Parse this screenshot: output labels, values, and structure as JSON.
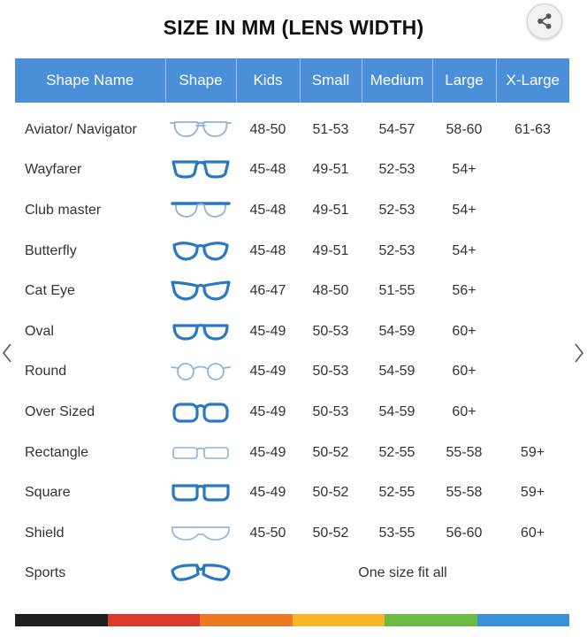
{
  "page": {
    "title": "SIZE IN MM (LENS WIDTH)"
  },
  "icons": {
    "share": "share-icon",
    "prev": "chevron-left-icon",
    "next": "chevron-right-icon"
  },
  "colors": {
    "header_bg": "#4a8fd8",
    "frame_bold": "#2b78c2",
    "frame_light": "#8fb4d8",
    "bar": [
      "#1f1f1f",
      "#d93a2b",
      "#ec7a24",
      "#f7b52a",
      "#6dbb45",
      "#3d8fd6"
    ]
  },
  "table": {
    "headers": [
      "Shape Name",
      "Shape",
      "Kids",
      "Small",
      "Medium",
      "Large",
      "X-Large"
    ],
    "rows": [
      {
        "name": "Aviator/ Navigator",
        "shape": "aviator",
        "kids": "48-50",
        "small": "51-53",
        "medium": "54-57",
        "large": "58-60",
        "xlarge": "61-63"
      },
      {
        "name": "Wayfarer",
        "shape": "wayfarer",
        "kids": "45-48",
        "small": "49-51",
        "medium": "52-53",
        "large": "54+",
        "xlarge": ""
      },
      {
        "name": "Club master",
        "shape": "clubmaster",
        "kids": "45-48",
        "small": "49-51",
        "medium": "52-53",
        "large": "54+",
        "xlarge": ""
      },
      {
        "name": "Butterfly",
        "shape": "butterfly",
        "kids": "45-48",
        "small": "49-51",
        "medium": "52-53",
        "large": "54+",
        "xlarge": ""
      },
      {
        "name": "Cat Eye",
        "shape": "cateye",
        "kids": "46-47",
        "small": "48-50",
        "medium": "51-55",
        "large": "56+",
        "xlarge": ""
      },
      {
        "name": "Oval",
        "shape": "oval",
        "kids": "45-49",
        "small": "50-53",
        "medium": "54-59",
        "large": "60+",
        "xlarge": ""
      },
      {
        "name": "Round",
        "shape": "round",
        "kids": "45-49",
        "small": "50-53",
        "medium": "54-59",
        "large": "60+",
        "xlarge": ""
      },
      {
        "name": "Over Sized",
        "shape": "oversized",
        "kids": "45-49",
        "small": "50-53",
        "medium": "54-59",
        "large": "60+",
        "xlarge": ""
      },
      {
        "name": "Rectangle",
        "shape": "rectangle",
        "kids": "45-49",
        "small": "50-52",
        "medium": "52-55",
        "large": "55-58",
        "xlarge": "59+"
      },
      {
        "name": "Square",
        "shape": "square",
        "kids": "45-49",
        "small": "50-52",
        "medium": "52-55",
        "large": "55-58",
        "xlarge": "59+"
      },
      {
        "name": "Shield",
        "shape": "shield",
        "kids": "45-50",
        "small": "50-52",
        "medium": "53-55",
        "large": "56-60",
        "xlarge": "60+"
      }
    ],
    "sports": {
      "name": "Sports",
      "shape": "sports",
      "note": "One size fit all"
    }
  }
}
